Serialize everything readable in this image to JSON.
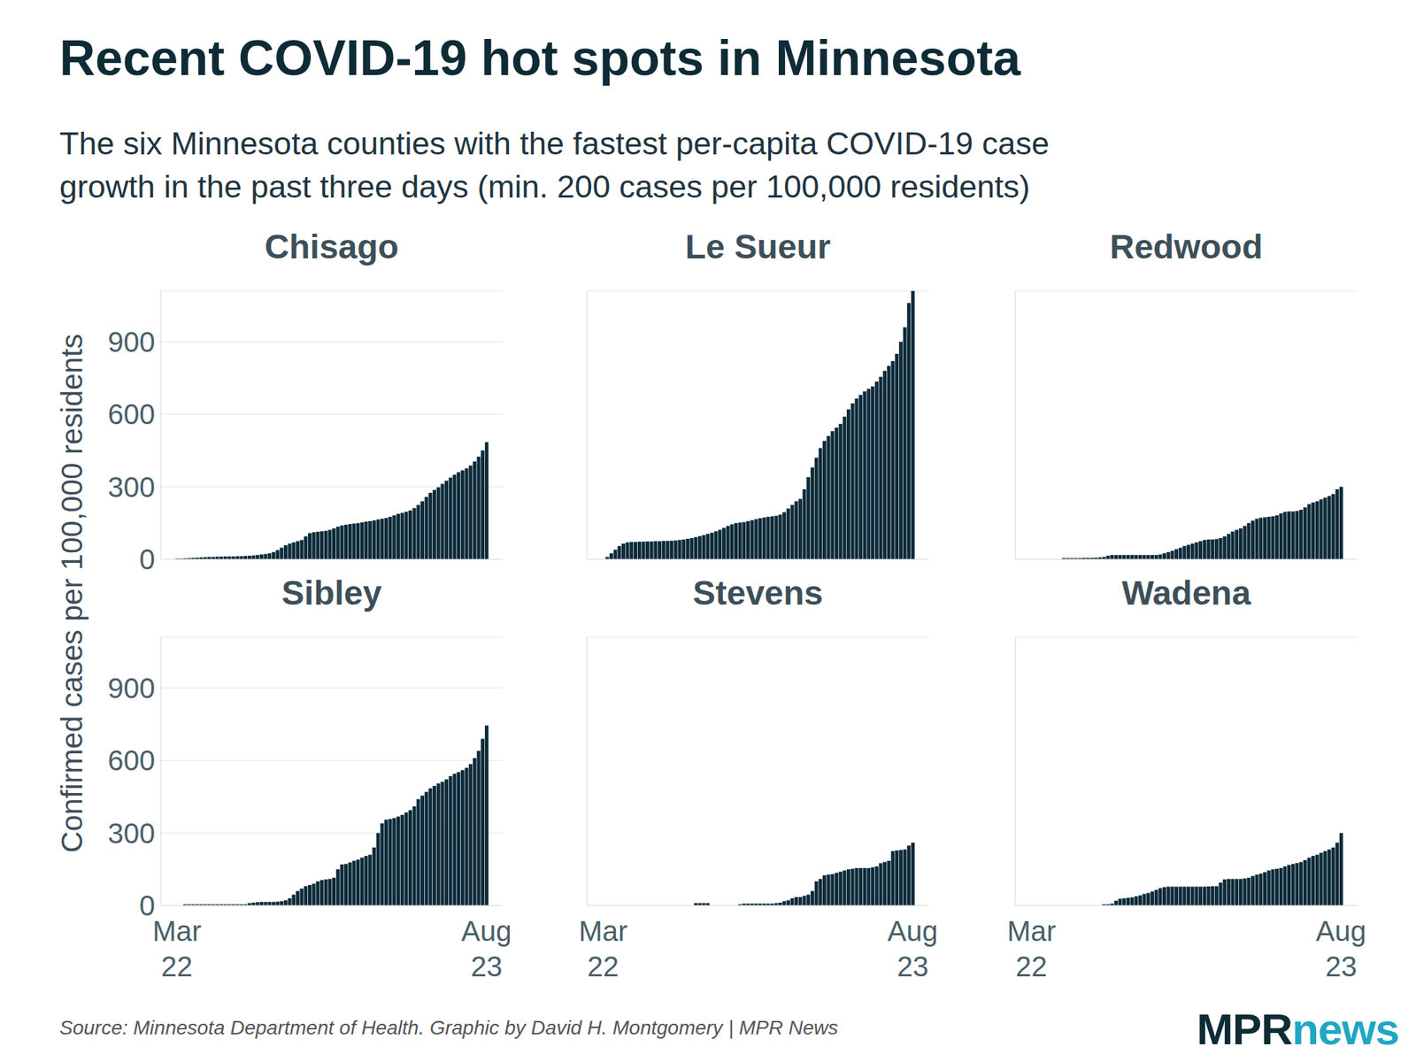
{
  "title": "Recent COVID-19 hot spots in Minnesota",
  "subtitle": "The six Minnesota counties with the fastest per-capita COVID-19 case\ngrowth in the past three days (min. 200 cases per 100,000 residents)",
  "y_label": "Confirmed cases per 100,000 residents",
  "source": "Source: Minnesota Department of Health. Graphic by David H. Montgomery | MPR News",
  "logo": [
    "MPR",
    "news"
  ],
  "chart_data": [
    {
      "type": "bar",
      "title": "Chisago",
      "color": "#0d2b3a",
      "grid": true,
      "tick_labels": "y",
      "ylim": [
        0,
        1110
      ],
      "yticks": [
        0,
        300,
        600,
        900
      ],
      "categories": [
        "Mar 22",
        null,
        null,
        null,
        null,
        null,
        null,
        null,
        null,
        null,
        null,
        null,
        null,
        null,
        null,
        null,
        null,
        null,
        null,
        null,
        null,
        null,
        null,
        null,
        null,
        null,
        null,
        null,
        null,
        null,
        null,
        null,
        null,
        null,
        null,
        null,
        null,
        null,
        null,
        null,
        null,
        null,
        null,
        null,
        null,
        null,
        null,
        null,
        null,
        null,
        null,
        null,
        null,
        null,
        null,
        null,
        null,
        null,
        null,
        null,
        null,
        null,
        null,
        null,
        null,
        null,
        null,
        null,
        null,
        null,
        null,
        null,
        null,
        null,
        null,
        null,
        null,
        "Aug 23"
      ],
      "values": [
        3,
        3,
        4,
        5,
        6,
        7,
        8,
        9,
        10,
        10,
        11,
        11,
        12,
        12,
        12,
        13,
        13,
        14,
        15,
        16,
        18,
        20,
        22,
        25,
        30,
        38,
        48,
        58,
        65,
        70,
        75,
        80,
        95,
        108,
        112,
        114,
        116,
        118,
        122,
        128,
        135,
        140,
        143,
        146,
        148,
        150,
        153,
        156,
        158,
        161,
        165,
        168,
        171,
        176,
        182,
        188,
        192,
        197,
        202,
        212,
        225,
        240,
        258,
        275,
        287,
        298,
        312,
        325,
        338,
        350,
        360,
        368,
        376,
        388,
        405,
        425,
        450,
        485
      ]
    },
    {
      "type": "bar",
      "title": "Le Sueur",
      "color": "#0d2b3a",
      "grid": true,
      "tick_labels": false,
      "ylim": [
        0,
        1110
      ],
      "yticks": [
        0,
        300,
        600,
        900
      ],
      "categories": [
        "Mar 22",
        null,
        null,
        null,
        null,
        null,
        null,
        null,
        null,
        null,
        null,
        null,
        null,
        null,
        null,
        null,
        null,
        null,
        null,
        null,
        null,
        null,
        null,
        null,
        null,
        null,
        null,
        null,
        null,
        null,
        null,
        null,
        null,
        null,
        null,
        null,
        null,
        null,
        null,
        null,
        null,
        null,
        null,
        null,
        null,
        null,
        null,
        null,
        null,
        null,
        null,
        null,
        null,
        null,
        null,
        null,
        null,
        null,
        null,
        null,
        null,
        null,
        null,
        null,
        null,
        null,
        null,
        null,
        null,
        null,
        null,
        null,
        null,
        null,
        null,
        null,
        null,
        "Aug 23"
      ],
      "values": [
        0,
        10,
        25,
        40,
        55,
        65,
        70,
        72,
        72,
        73,
        73,
        74,
        74,
        75,
        75,
        76,
        76,
        77,
        78,
        80,
        82,
        85,
        88,
        92,
        96,
        100,
        105,
        110,
        116,
        122,
        130,
        138,
        145,
        150,
        152,
        154,
        158,
        162,
        166,
        170,
        173,
        176,
        178,
        180,
        185,
        195,
        210,
        225,
        240,
        250,
        290,
        340,
        380,
        420,
        460,
        490,
        510,
        530,
        545,
        560,
        590,
        620,
        645,
        665,
        680,
        695,
        705,
        715,
        735,
        755,
        780,
        800,
        820,
        850,
        900,
        960,
        1060,
        1110
      ]
    },
    {
      "type": "bar",
      "title": "Redwood",
      "color": "#0d2b3a",
      "grid": true,
      "tick_labels": false,
      "ylim": [
        0,
        1110
      ],
      "yticks": [
        0,
        300,
        600,
        900
      ],
      "categories": [
        "Mar 22",
        null,
        null,
        null,
        null,
        null,
        null,
        null,
        null,
        null,
        null,
        null,
        null,
        null,
        null,
        null,
        null,
        null,
        null,
        null,
        null,
        null,
        null,
        null,
        null,
        null,
        null,
        null,
        null,
        null,
        null,
        null,
        null,
        null,
        null,
        null,
        null,
        null,
        null,
        null,
        null,
        null,
        null,
        null,
        null,
        null,
        null,
        null,
        null,
        null,
        null,
        null,
        null,
        null,
        null,
        null,
        null,
        null,
        null,
        null,
        null,
        null,
        null,
        null,
        null,
        null,
        null,
        null,
        null,
        null,
        null,
        null,
        null,
        null,
        null,
        null,
        null,
        "Aug 23"
      ],
      "values": [
        0,
        0,
        0,
        0,
        0,
        0,
        0,
        0,
        5,
        5,
        5,
        5,
        5,
        6,
        6,
        6,
        7,
        8,
        10,
        15,
        18,
        18,
        18,
        18,
        18,
        18,
        18,
        18,
        18,
        18,
        18,
        18,
        20,
        25,
        30,
        35,
        42,
        48,
        55,
        60,
        65,
        70,
        75,
        80,
        82,
        82,
        84,
        88,
        95,
        105,
        115,
        122,
        128,
        138,
        150,
        160,
        168,
        172,
        174,
        176,
        178,
        182,
        190,
        196,
        198,
        198,
        200,
        205,
        215,
        228,
        235,
        240,
        248,
        255,
        262,
        270,
        290,
        300
      ]
    },
    {
      "type": "bar",
      "title": "Sibley",
      "color": "#0d2b3a",
      "grid": true,
      "tick_labels": true,
      "ylim": [
        0,
        1110
      ],
      "yticks": [
        0,
        300,
        600,
        900
      ],
      "categories": [
        "Mar 22",
        null,
        null,
        null,
        null,
        null,
        null,
        null,
        null,
        null,
        null,
        null,
        null,
        null,
        null,
        null,
        null,
        null,
        null,
        null,
        null,
        null,
        null,
        null,
        null,
        null,
        null,
        null,
        null,
        null,
        null,
        null,
        null,
        null,
        null,
        null,
        null,
        null,
        null,
        null,
        null,
        null,
        null,
        null,
        null,
        null,
        null,
        null,
        null,
        null,
        null,
        null,
        null,
        null,
        null,
        null,
        null,
        null,
        null,
        null,
        null,
        null,
        null,
        null,
        null,
        null,
        null,
        null,
        null,
        null,
        null,
        null,
        null,
        null,
        null,
        null,
        null,
        "Aug 23"
      ],
      "values": [
        0,
        0,
        5,
        5,
        5,
        5,
        5,
        5,
        5,
        5,
        5,
        5,
        5,
        5,
        5,
        5,
        5,
        5,
        10,
        12,
        14,
        15,
        15,
        15,
        15,
        16,
        18,
        22,
        30,
        45,
        60,
        70,
        80,
        85,
        90,
        100,
        105,
        108,
        110,
        115,
        150,
        170,
        172,
        178,
        185,
        190,
        198,
        205,
        210,
        240,
        300,
        340,
        355,
        358,
        362,
        368,
        375,
        385,
        395,
        410,
        440,
        455,
        470,
        485,
        495,
        505,
        512,
        522,
        535,
        545,
        552,
        560,
        570,
        585,
        610,
        640,
        690,
        745
      ]
    },
    {
      "type": "bar",
      "title": "Stevens",
      "color": "#0d2b3a",
      "grid": true,
      "tick_labels": "x",
      "ylim": [
        0,
        1110
      ],
      "yticks": [
        0,
        300,
        600,
        900
      ],
      "categories": [
        "Mar 22",
        null,
        null,
        null,
        null,
        null,
        null,
        null,
        null,
        null,
        null,
        null,
        null,
        null,
        null,
        null,
        null,
        null,
        null,
        null,
        null,
        null,
        null,
        null,
        null,
        null,
        null,
        null,
        null,
        null,
        null,
        null,
        null,
        null,
        null,
        null,
        null,
        null,
        null,
        null,
        null,
        null,
        null,
        null,
        null,
        null,
        null,
        null,
        null,
        null,
        null,
        null,
        null,
        null,
        null,
        null,
        null,
        null,
        null,
        null,
        null,
        null,
        null,
        null,
        null,
        null,
        null,
        null,
        null,
        null,
        null,
        null,
        null,
        null,
        null,
        null,
        null,
        "Aug 23"
      ],
      "values": [
        0,
        0,
        0,
        0,
        0,
        0,
        0,
        0,
        0,
        0,
        0,
        0,
        0,
        0,
        0,
        0,
        0,
        0,
        0,
        0,
        0,
        0,
        0,
        10,
        10,
        10,
        10,
        0,
        0,
        0,
        0,
        0,
        0,
        0,
        5,
        8,
        8,
        8,
        8,
        8,
        8,
        8,
        8,
        10,
        12,
        18,
        22,
        30,
        35,
        35,
        40,
        45,
        60,
        100,
        110,
        125,
        128,
        130,
        135,
        140,
        145,
        150,
        152,
        155,
        155,
        155,
        155,
        158,
        162,
        175,
        180,
        185,
        225,
        228,
        230,
        232,
        248,
        260
      ]
    },
    {
      "type": "bar",
      "title": "Wadena",
      "color": "#0d2b3a",
      "grid": true,
      "tick_labels": "x",
      "ylim": [
        0,
        1110
      ],
      "yticks": [
        0,
        300,
        600,
        900
      ],
      "categories": [
        "Mar 22",
        null,
        null,
        null,
        null,
        null,
        null,
        null,
        null,
        null,
        null,
        null,
        null,
        null,
        null,
        null,
        null,
        null,
        null,
        null,
        null,
        null,
        null,
        null,
        null,
        null,
        null,
        null,
        null,
        null,
        null,
        null,
        null,
        null,
        null,
        null,
        null,
        null,
        null,
        null,
        null,
        null,
        null,
        null,
        null,
        null,
        null,
        null,
        null,
        null,
        null,
        null,
        null,
        null,
        null,
        null,
        null,
        null,
        null,
        null,
        null,
        null,
        null,
        null,
        null,
        null,
        null,
        null,
        null,
        null,
        null,
        null,
        null,
        null,
        null,
        null,
        null,
        "Aug 23"
      ],
      "values": [
        0,
        0,
        0,
        0,
        0,
        0,
        0,
        0,
        0,
        0,
        0,
        0,
        0,
        0,
        0,
        0,
        0,
        0,
        5,
        5,
        8,
        20,
        28,
        30,
        32,
        34,
        38,
        42,
        48,
        52,
        58,
        65,
        72,
        76,
        78,
        78,
        78,
        78,
        78,
        78,
        78,
        78,
        78,
        78,
        79,
        80,
        80,
        95,
        108,
        110,
        110,
        110,
        110,
        112,
        115,
        122,
        128,
        132,
        138,
        145,
        150,
        152,
        155,
        162,
        168,
        172,
        176,
        180,
        188,
        198,
        205,
        210,
        218,
        225,
        232,
        240,
        260,
        300
      ]
    }
  ]
}
